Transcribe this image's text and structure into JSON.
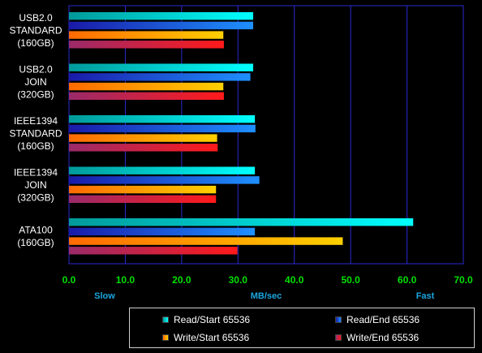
{
  "chart_data": {
    "type": "bar",
    "orientation": "horizontal",
    "categories": [
      [
        "USB2.0",
        "STANDARD",
        "(160GB)"
      ],
      [
        "USB2.0",
        "JOIN",
        "(320GB)"
      ],
      [
        "IEEE1394",
        "STANDARD",
        "(160GB)"
      ],
      [
        "IEEE1394",
        "JOIN",
        "(320GB)"
      ],
      [
        "ATA100",
        "(160GB)"
      ]
    ],
    "series": [
      {
        "name": "Read/Start 65536",
        "color": "#00ffff",
        "dark": "#009a9a",
        "values": [
          32.7,
          32.7,
          33.0,
          33.0,
          61.1
        ]
      },
      {
        "name": "Read/End 65536",
        "color": "#1e90ff",
        "dark": "#1a1aa8",
        "values": [
          32.7,
          32.2,
          33.1,
          33.8,
          33.0
        ]
      },
      {
        "name": "Write/Start 65536",
        "color": "#ffd000",
        "dark": "#ff6a00",
        "values": [
          27.4,
          27.4,
          26.3,
          26.1,
          48.6
        ]
      },
      {
        "name": "Write/End 65536",
        "color": "#ff1a1a",
        "dark": "#9a2a6a",
        "values": [
          27.5,
          27.5,
          26.4,
          26.1,
          29.9
        ]
      }
    ],
    "xlim": [
      0,
      70
    ],
    "xticks": [
      "0.0",
      "10.0",
      "20.0",
      "30.0",
      "40.0",
      "50.0",
      "60.0",
      "70.0"
    ],
    "axis_words": {
      "left": "Slow",
      "center": "MB/sec",
      "right": "Fast"
    },
    "grid": true,
    "legend_position": "bottom-right"
  }
}
